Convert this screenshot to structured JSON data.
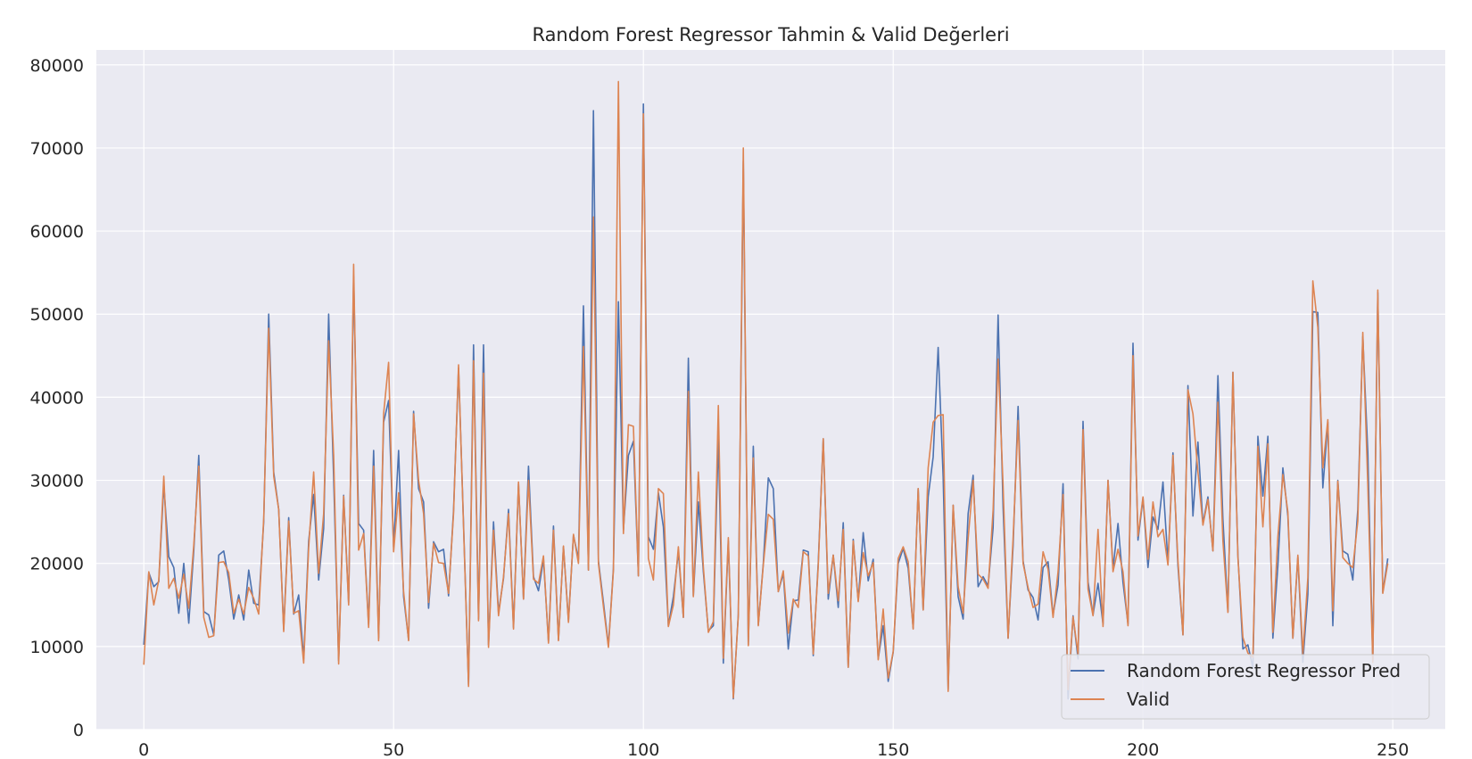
{
  "chart_data": {
    "type": "line",
    "title": "Random Forest Regressor Tahmin & Valid Değerleri",
    "xlabel": "",
    "ylabel": "",
    "xlim": [
      -9.5,
      260.5
    ],
    "ylim": [
      0,
      81800
    ],
    "x_ticks": [
      0,
      50,
      100,
      150,
      200,
      250
    ],
    "y_ticks": [
      0,
      10000,
      20000,
      30000,
      40000,
      50000,
      60000,
      70000,
      80000
    ],
    "grid": true,
    "legend": "lower-right",
    "background_color": "#eaeaf2",
    "grid_color": "#ffffff",
    "series": [
      {
        "name": "Random Forest Regressor Pred",
        "color": "#4c72b0",
        "values": [
          10200,
          18900,
          17200,
          17800,
          29500,
          20800,
          19500,
          14000,
          20000,
          12800,
          21500,
          33000,
          14200,
          13800,
          11400,
          21000,
          21500,
          18000,
          13300,
          16200,
          13200,
          19200,
          15200,
          15000,
          25000,
          50000,
          31000,
          26500,
          12100,
          25500,
          13900,
          16200,
          8500,
          22700,
          28300,
          18000,
          24200,
          50000,
          30300,
          8300,
          28200,
          15300,
          54500,
          24800,
          24000,
          12600,
          33600,
          11000,
          37000,
          39600,
          22000,
          33600,
          16000,
          10800,
          38300,
          29000,
          27400,
          14600,
          22600,
          21400,
          21700,
          16100,
          26400,
          43500,
          24700,
          5400,
          46300,
          13300,
          46300,
          10200,
          25000,
          14100,
          18200,
          26500,
          12300,
          29600,
          15700,
          31700,
          18400,
          16700,
          20500,
          10600,
          24500,
          10800,
          22000,
          13100,
          23400,
          20500,
          51000,
          19200,
          74500,
          20300,
          15300,
          10100,
          19400,
          51500,
          24000,
          33000,
          34700,
          18500,
          75300,
          23200,
          21700,
          28500,
          24400,
          12500,
          16000,
          21400,
          13500,
          44700,
          16100,
          27400,
          19000,
          11900,
          12500,
          35100,
          8000,
          22700,
          3700,
          13900,
          68400,
          10200,
          34100,
          12600,
          20000,
          30300,
          29000,
          16600,
          18800,
          9700,
          15500,
          15600,
          21600,
          21400,
          8900,
          20100,
          35000,
          15700,
          21000,
          14700,
          24900,
          7500,
          22900,
          15500,
          23700,
          17900,
          20500,
          8500,
          12500,
          5800,
          9300,
          20000,
          21800,
          19400,
          12200,
          29000,
          14400,
          28000,
          32800,
          46000,
          30400,
          4800,
          27000,
          16000,
          13300,
          26000,
          30600,
          17200,
          18400,
          17300,
          24300,
          49900,
          26700,
          11000,
          22100,
          38900,
          20300,
          16800,
          15900,
          13200,
          19500,
          20200,
          13800,
          17400,
          29600,
          3700,
          13700,
          8500,
          37100,
          17800,
          13800,
          17600,
          12700,
          30000,
          19400,
          24800,
          17700,
          12700,
          46500,
          22800,
          27800,
          19500,
          25600,
          24100,
          29800,
          20100,
          33300,
          19700,
          11400,
          41400,
          25700,
          34600,
          24800,
          28000,
          21500,
          42600,
          25300,
          14200,
          43000,
          21000,
          9700,
          10200,
          7400,
          35300,
          28100,
          35300,
          11000,
          19700,
          31500,
          25700,
          11000,
          20800,
          8100,
          16300,
          50300,
          50200,
          29100,
          37000,
          12500,
          30000,
          21500,
          21100,
          18000,
          26500,
          47300,
          33400,
          8300,
          52600,
          16500,
          20600
        ],
        "valid": true
      },
      {
        "name": "Valid",
        "color": "#dd8452",
        "values": [
          7800,
          19000,
          15000,
          18000,
          30500,
          17000,
          18200,
          15800,
          18700,
          14600,
          22200,
          31700,
          13500,
          11100,
          11300,
          20100,
          20200,
          18900,
          14000,
          15700,
          13900,
          17100,
          15800,
          13900,
          25400,
          48300,
          30500,
          26500,
          11800,
          25100,
          14000,
          14300,
          8000,
          21900,
          31000,
          18800,
          26000,
          46800,
          33000,
          7900,
          28100,
          15000,
          56000,
          21600,
          23600,
          12300,
          31700,
          10700,
          38000,
          44200,
          21400,
          28500,
          16600,
          10700,
          38000,
          30000,
          26000,
          15300,
          22400,
          20100,
          20000,
          16400,
          26000,
          43900,
          24400,
          5200,
          44400,
          13100,
          42900,
          9900,
          24000,
          13700,
          18400,
          26000,
          12100,
          29800,
          15700,
          30000,
          18100,
          17600,
          20900,
          10400,
          24000,
          10700,
          22100,
          12900,
          23500,
          20000,
          46100,
          19200,
          61700,
          20000,
          14800,
          9900,
          19200,
          78000,
          23600,
          36700,
          36500,
          18500,
          74100,
          20600,
          18000,
          29000,
          28400,
          12400,
          15000,
          22000,
          13500,
          40700,
          16000,
          31000,
          19600,
          11700,
          13000,
          39000,
          8600,
          23100,
          3800,
          13700,
          70000,
          10100,
          32700,
          12500,
          19800,
          25900,
          25300,
          16600,
          19100,
          11600,
          15700,
          14700,
          21400,
          20900,
          9100,
          19700,
          35000,
          16400,
          21000,
          15500,
          24100,
          7500,
          22700,
          15400,
          21300,
          18500,
          20100,
          8400,
          14500,
          6200,
          9400,
          20600,
          22000,
          20200,
          12100,
          29000,
          14400,
          31500,
          37000,
          37800,
          37900,
          4600,
          27000,
          17200,
          14000,
          23000,
          30000,
          18700,
          18100,
          17000,
          26400,
          44600,
          29300,
          11000,
          23000,
          37200,
          20000,
          17100,
          14700,
          15100,
          21400,
          19300,
          13500,
          19000,
          28300,
          4800,
          13600,
          9100,
          36100,
          16900,
          13700,
          24100,
          12400,
          30000,
          19000,
          21700,
          19000,
          12500,
          45000,
          23300,
          28000,
          20500,
          27400,
          23200,
          24100,
          19800,
          33000,
          20300,
          11400,
          40900,
          38000,
          31000,
          24600,
          27700,
          21500,
          39400,
          22700,
          14100,
          43000,
          20700,
          11100,
          9200,
          8700,
          34100,
          24400,
          34400,
          11700,
          23200,
          30700,
          26200,
          11000,
          21000,
          9100,
          18300,
          54000,
          48400,
          31500,
          37300,
          14300,
          29900,
          20700,
          20000,
          19500,
          25100,
          47800,
          29500,
          8100,
          52900,
          16400,
          20000
        ],
        "valid": false
      }
    ]
  }
}
